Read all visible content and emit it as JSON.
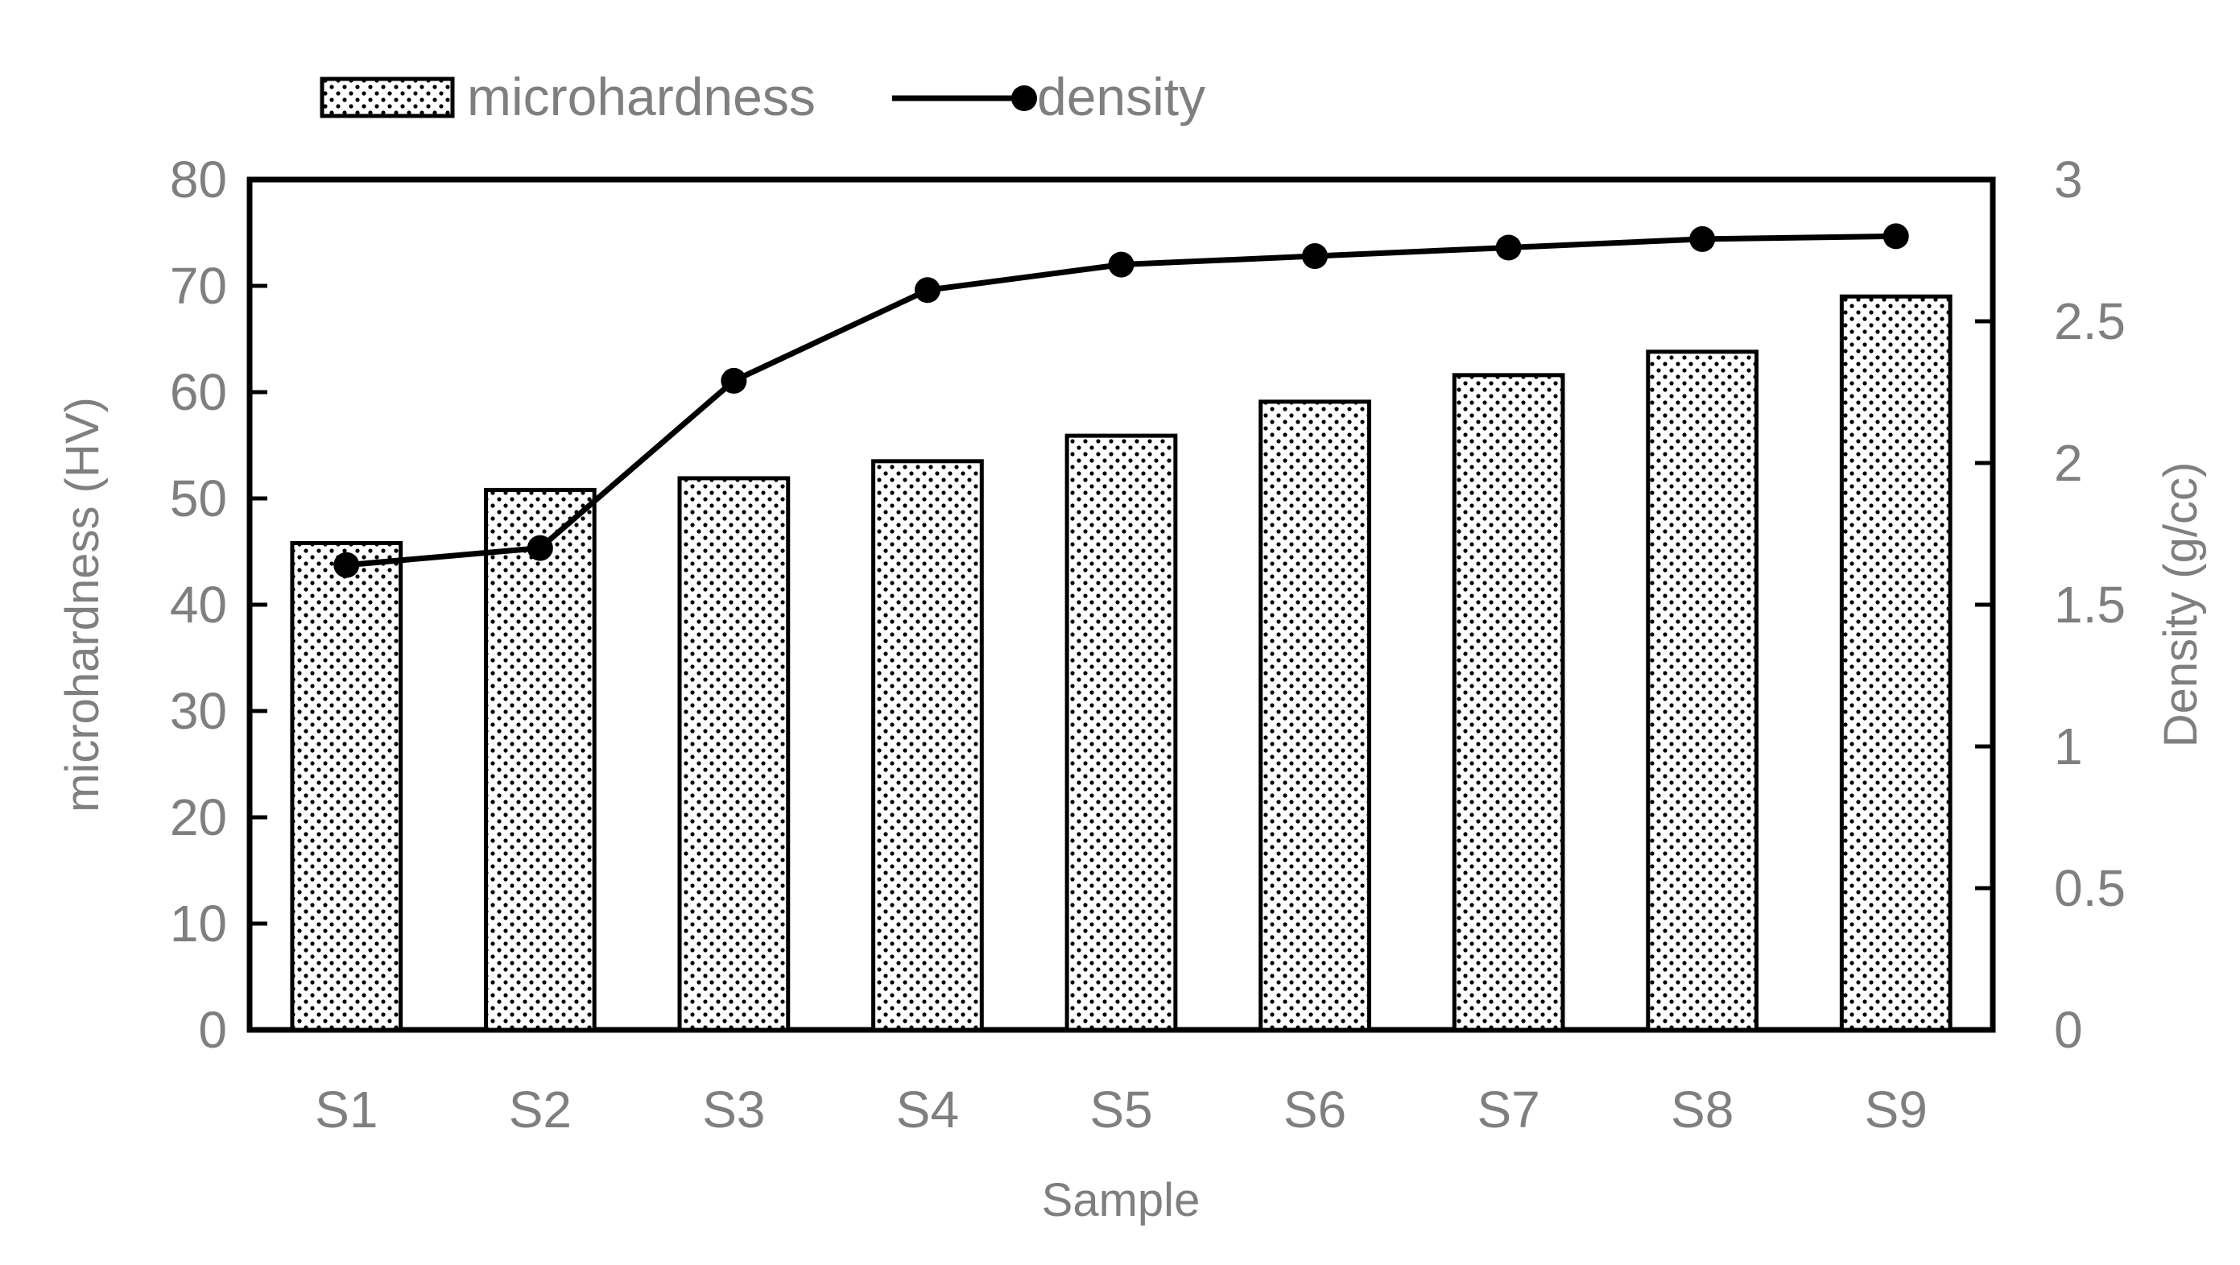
{
  "chart_data": {
    "type": "bar",
    "categories": [
      "S1",
      "S2",
      "S3",
      "S4",
      "S5",
      "S6",
      "S7",
      "S8",
      "S9"
    ],
    "series": [
      {
        "name": "microhardness",
        "type": "bar",
        "axis": "left",
        "values": [
          45.8,
          50.8,
          51.9,
          53.5,
          55.9,
          59.1,
          61.6,
          63.8,
          69.0
        ],
        "pattern": "dotted"
      },
      {
        "name": "density",
        "type": "line",
        "axis": "right",
        "marker": "circle",
        "values": [
          1.64,
          1.7,
          2.29,
          2.61,
          2.7,
          2.73,
          2.76,
          2.79,
          2.8
        ]
      }
    ],
    "xlabel": "Sample",
    "ylabel": "microhardness (HV)",
    "y2label": "Density (g/cc)",
    "ylim": [
      0,
      80
    ],
    "y2lim": [
      0,
      3
    ],
    "yticks": [
      "0",
      "10",
      "20",
      "30",
      "40",
      "50",
      "60",
      "70",
      "80"
    ],
    "y2ticks": [
      "0",
      "0.5",
      "1",
      "1.5",
      "2",
      "2.5",
      "3"
    ],
    "grid": false,
    "legend": "top-left",
    "colors": {
      "bar_fill": "#ffffff",
      "bar_dots": "#000000",
      "bar_stroke": "#000000",
      "line": "#000000",
      "axis": "#000000",
      "text": "#7f7f7f"
    }
  }
}
